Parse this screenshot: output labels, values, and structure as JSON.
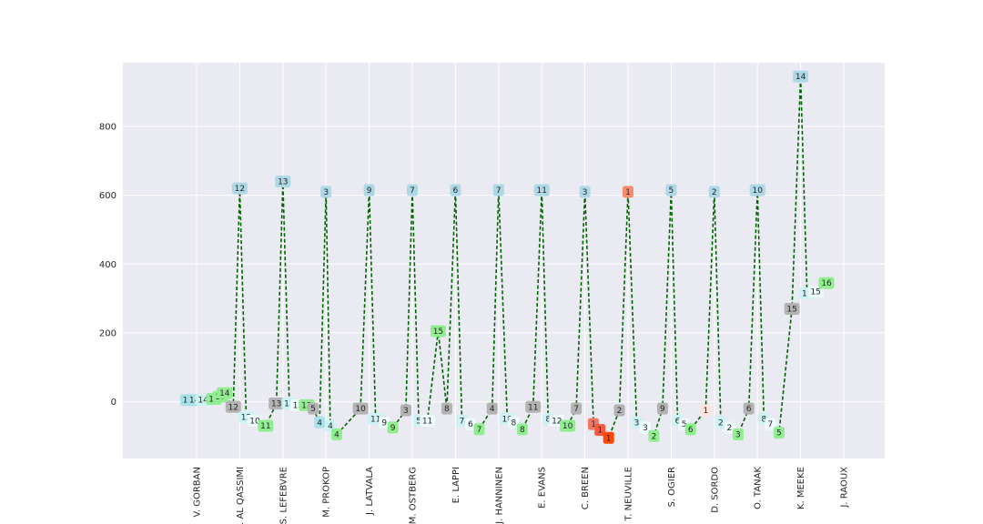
{
  "chart_data": {
    "type": "line",
    "title": "",
    "xlabel": "",
    "ylabel": "",
    "ylim": [
      -165,
      985
    ],
    "yticks": [
      0,
      200,
      400,
      600,
      800
    ],
    "grid": true,
    "line_color": "#006400",
    "categories": [
      "V. GORBAN",
      "S. AL QASSIMI",
      "S. LEFEBVRE",
      "M. PROKOP",
      "J. LATVALA",
      "M. OSTBERG",
      "E. LAPPI",
      "J. HANNINEN",
      "E. EVANS",
      "C. BREEN",
      "T. NEUVILLE",
      "S. OGIER",
      "D. SORDO",
      "O. TANAK",
      "K. MEEKE",
      "J. RAOUX"
    ],
    "points": [
      {
        "x": -0.2,
        "y": 5,
        "label": "14",
        "color": "#a6e3e9"
      },
      {
        "x": -0.05,
        "y": 5,
        "label": "14",
        "color": "#a6e3e9"
      },
      {
        "x": 0.15,
        "y": 5,
        "label": "14",
        "color": "#ccf2f6"
      },
      {
        "x": 0.4,
        "y": 8,
        "label": "13",
        "color": "#90ee90"
      },
      {
        "x": 0.55,
        "y": 15,
        "label": "13",
        "color": "#90ee90"
      },
      {
        "x": 0.65,
        "y": 25,
        "label": "14",
        "color": "#90ee90"
      },
      {
        "x": 0.85,
        "y": -15,
        "label": "12",
        "color": "#b3b3b3"
      },
      {
        "x": 1.0,
        "y": 620,
        "label": "12",
        "color": "#add8e6"
      },
      {
        "x": 1.15,
        "y": -45,
        "label": "12",
        "color": "#ccf2f6"
      },
      {
        "x": 1.35,
        "y": -55,
        "label": "10",
        "color": "#eefcfd"
      },
      {
        "x": 1.6,
        "y": -70,
        "label": "11",
        "color": "#90ee90"
      },
      {
        "x": 1.85,
        "y": -5,
        "label": "13",
        "color": "#b3b3b3"
      },
      {
        "x": 2.0,
        "y": 640,
        "label": "13",
        "color": "#add8e6"
      },
      {
        "x": 2.15,
        "y": -5,
        "label": "13",
        "color": "#ccf2f6"
      },
      {
        "x": 2.35,
        "y": -10,
        "label": "13",
        "color": "#eefcfd"
      },
      {
        "x": 2.55,
        "y": -10,
        "label": "13",
        "color": "#90ee90"
      },
      {
        "x": 2.7,
        "y": -20,
        "label": "5",
        "color": "#b3b3b3"
      },
      {
        "x": 2.85,
        "y": -60,
        "label": "4",
        "color": "#a6e3e9"
      },
      {
        "x": 3.0,
        "y": 610,
        "label": "3",
        "color": "#add8e6"
      },
      {
        "x": 3.1,
        "y": -70,
        "label": "4",
        "color": "#ccf2f6"
      },
      {
        "x": 3.25,
        "y": -95,
        "label": "4",
        "color": "#90ee90"
      },
      {
        "x": 3.8,
        "y": -20,
        "label": "10",
        "color": "#b3b3b3"
      },
      {
        "x": 4.0,
        "y": 615,
        "label": "9",
        "color": "#add8e6"
      },
      {
        "x": 4.15,
        "y": -50,
        "label": "11",
        "color": "#ccf2f6"
      },
      {
        "x": 4.35,
        "y": -60,
        "label": "9",
        "color": "#eefcfd"
      },
      {
        "x": 4.55,
        "y": -75,
        "label": "9",
        "color": "#90ee90"
      },
      {
        "x": 4.85,
        "y": -25,
        "label": "3",
        "color": "#b3b3b3"
      },
      {
        "x": 5.0,
        "y": 615,
        "label": "7",
        "color": "#add8e6"
      },
      {
        "x": 5.15,
        "y": -55,
        "label": "5",
        "color": "#ccf2f6"
      },
      {
        "x": 5.35,
        "y": -55,
        "label": "11",
        "color": "#eefcfd"
      },
      {
        "x": 5.6,
        "y": 205,
        "label": "15",
        "color": "#90ee90"
      },
      {
        "x": 5.8,
        "y": -20,
        "label": "8",
        "color": "#b3b3b3"
      },
      {
        "x": 6.0,
        "y": 615,
        "label": "6",
        "color": "#add8e6"
      },
      {
        "x": 6.15,
        "y": -55,
        "label": "7",
        "color": "#ccf2f6"
      },
      {
        "x": 6.35,
        "y": -65,
        "label": "6",
        "color": "#eefcfd"
      },
      {
        "x": 6.55,
        "y": -80,
        "label": "7",
        "color": "#90ee90"
      },
      {
        "x": 6.85,
        "y": -20,
        "label": "4",
        "color": "#b3b3b3"
      },
      {
        "x": 7.0,
        "y": 615,
        "label": "7",
        "color": "#add8e6"
      },
      {
        "x": 7.2,
        "y": -50,
        "label": "10",
        "color": "#ccf2f6"
      },
      {
        "x": 7.35,
        "y": -60,
        "label": "8",
        "color": "#eefcfd"
      },
      {
        "x": 7.55,
        "y": -80,
        "label": "8",
        "color": "#90ee90"
      },
      {
        "x": 7.8,
        "y": -15,
        "label": "11",
        "color": "#b3b3b3"
      },
      {
        "x": 8.0,
        "y": 615,
        "label": "11",
        "color": "#add8e6"
      },
      {
        "x": 8.15,
        "y": -50,
        "label": "8",
        "color": "#ccf2f6"
      },
      {
        "x": 8.35,
        "y": -55,
        "label": "12",
        "color": "#eefcfd"
      },
      {
        "x": 8.6,
        "y": -70,
        "label": "10",
        "color": "#90ee90"
      },
      {
        "x": 8.8,
        "y": -20,
        "label": "7",
        "color": "#b3b3b3"
      },
      {
        "x": 9.0,
        "y": 610,
        "label": "3",
        "color": "#add8e6"
      },
      {
        "x": 9.2,
        "y": -65,
        "label": "1",
        "color": "#f47560"
      },
      {
        "x": 9.35,
        "y": -82,
        "label": "1",
        "color": "#f65a3f"
      },
      {
        "x": 9.55,
        "y": -105,
        "label": "1",
        "color": "#ff4500"
      },
      {
        "x": 9.8,
        "y": -25,
        "label": "2",
        "color": "#b3b3b3"
      },
      {
        "x": 10.0,
        "y": 610,
        "label": "1",
        "color": "#fa8c6e"
      },
      {
        "x": 10.2,
        "y": -60,
        "label": "3",
        "color": "#ccf2f6"
      },
      {
        "x": 10.4,
        "y": -75,
        "label": "3",
        "color": "#eefcfd"
      },
      {
        "x": 10.6,
        "y": -100,
        "label": "2",
        "color": "#90ee90"
      },
      {
        "x": 10.8,
        "y": -20,
        "label": "9",
        "color": "#b3b3b3"
      },
      {
        "x": 11.0,
        "y": 615,
        "label": "5",
        "color": "#add8e6"
      },
      {
        "x": 11.15,
        "y": -55,
        "label": "6",
        "color": "#ccf2f6"
      },
      {
        "x": 11.3,
        "y": -65,
        "label": "5",
        "color": "#eefcfd"
      },
      {
        "x": 11.45,
        "y": -80,
        "label": "6",
        "color": "#90ee90"
      },
      {
        "x": 11.8,
        "y": -25,
        "label": "1",
        "color": "#fde4dc"
      },
      {
        "x": 12.0,
        "y": 610,
        "label": "2",
        "color": "#add8e6"
      },
      {
        "x": 12.15,
        "y": -60,
        "label": "2",
        "color": "#ccf2f6"
      },
      {
        "x": 12.35,
        "y": -75,
        "label": "2",
        "color": "#eefcfd"
      },
      {
        "x": 12.55,
        "y": -95,
        "label": "3",
        "color": "#90ee90"
      },
      {
        "x": 12.8,
        "y": -20,
        "label": "6",
        "color": "#b3b3b3"
      },
      {
        "x": 13.0,
        "y": 615,
        "label": "10",
        "color": "#add8e6"
      },
      {
        "x": 13.15,
        "y": -50,
        "label": "8",
        "color": "#ccf2f6"
      },
      {
        "x": 13.3,
        "y": -65,
        "label": "7",
        "color": "#eefcfd"
      },
      {
        "x": 13.5,
        "y": -90,
        "label": "5",
        "color": "#90ee90"
      },
      {
        "x": 13.8,
        "y": 270,
        "label": "15",
        "color": "#b3b3b3"
      },
      {
        "x": 14.0,
        "y": 945,
        "label": "14",
        "color": "#add8e6"
      },
      {
        "x": 14.15,
        "y": 315,
        "label": "11",
        "color": "#ccf2f6"
      },
      {
        "x": 14.35,
        "y": 320,
        "label": "15",
        "color": "#eefcfd"
      },
      {
        "x": 14.6,
        "y": 345,
        "label": "16",
        "color": "#90ee90"
      }
    ]
  }
}
